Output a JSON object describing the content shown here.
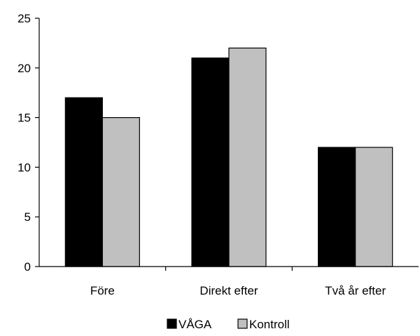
{
  "chart_data": {
    "type": "bar",
    "categories": [
      "Före",
      "Direkt efter",
      "Två år efter"
    ],
    "series": [
      {
        "name": "VÅGA",
        "values": [
          17,
          21,
          12
        ],
        "color": "#000000"
      },
      {
        "name": "Kontroll",
        "values": [
          15,
          22,
          12
        ],
        "color": "#c0c0c0"
      }
    ],
    "ylim": [
      0,
      25
    ],
    "yticks": [
      0,
      5,
      10,
      15,
      20,
      25
    ],
    "grid": false,
    "legend_position": "bottom"
  }
}
